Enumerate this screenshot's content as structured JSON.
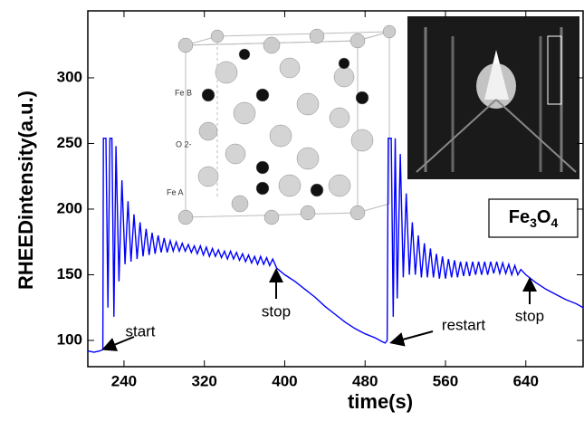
{
  "chart_data": {
    "type": "line",
    "xlabel": "time(s)",
    "ylabel": "RHEEDintensity(a.u.)",
    "xlim": [
      204,
      697
    ],
    "ylim": [
      80,
      351
    ],
    "xticks": [
      240,
      320,
      400,
      480,
      560,
      640
    ],
    "yticks": [
      100,
      150,
      200,
      250,
      300
    ],
    "series": [
      {
        "color": "#0000ff",
        "x": [
          204,
          210,
          216,
          219,
          219.5,
          222,
          224,
          226,
          228,
          230,
          232,
          235,
          238,
          241,
          244,
          247,
          250,
          253,
          256,
          259,
          262,
          265,
          268,
          271,
          274,
          277,
          280,
          283,
          286,
          289,
          292,
          295,
          298,
          301,
          304,
          307,
          310,
          313,
          316,
          319,
          322,
          325,
          328,
          331,
          334,
          337,
          340,
          343,
          346,
          349,
          352,
          355,
          358,
          361,
          364,
          367,
          370,
          373,
          376,
          379,
          382,
          385,
          388,
          392,
          400,
          410,
          420,
          430,
          440,
          450,
          460,
          470,
          480,
          490,
          497,
          500,
          502,
          503,
          506,
          508,
          510,
          512,
          515,
          518,
          521,
          524,
          527,
          530,
          533,
          536,
          539,
          542,
          545,
          548,
          551,
          554,
          557,
          560,
          563,
          566,
          569,
          572,
          575,
          578,
          581,
          584,
          587,
          590,
          593,
          596,
          599,
          602,
          605,
          608,
          611,
          614,
          617,
          620,
          623,
          626,
          629,
          632,
          635,
          640,
          650,
          660,
          670,
          680,
          690,
          697
        ],
        "values": [
          92,
          91,
          92,
          93,
          254,
          254,
          125,
          254,
          254,
          118,
          248,
          145,
          222,
          158,
          206,
          160,
          196,
          162,
          190,
          164,
          185,
          165,
          182,
          166,
          180,
          167,
          178,
          167,
          176,
          168,
          175,
          168,
          174,
          168,
          173,
          167,
          172,
          166,
          172,
          165,
          171,
          164,
          170,
          164,
          169,
          163,
          168,
          162,
          168,
          162,
          167,
          161,
          166,
          160,
          165,
          159,
          164,
          158,
          164,
          158,
          163,
          157,
          162,
          155,
          150,
          145,
          139,
          133,
          126,
          120,
          114,
          109,
          105,
          102,
          99,
          98,
          100,
          254,
          254,
          118,
          254,
          132,
          242,
          148,
          212,
          150,
          190,
          150,
          180,
          148,
          174,
          148,
          170,
          148,
          166,
          147,
          164,
          147,
          162,
          148,
          161,
          148,
          160,
          149,
          160,
          149,
          160,
          150,
          160,
          150,
          160,
          150,
          160,
          151,
          160,
          151,
          159,
          151,
          158,
          150,
          157,
          150,
          154,
          150,
          144,
          139,
          135,
          131,
          128,
          125
        ]
      }
    ],
    "annotations": [
      "start",
      "stop",
      "restart",
      "stop"
    ],
    "formula": "Fe3O4",
    "inset_labels": [
      "Fe B",
      "O 2-",
      "Fe A"
    ]
  }
}
